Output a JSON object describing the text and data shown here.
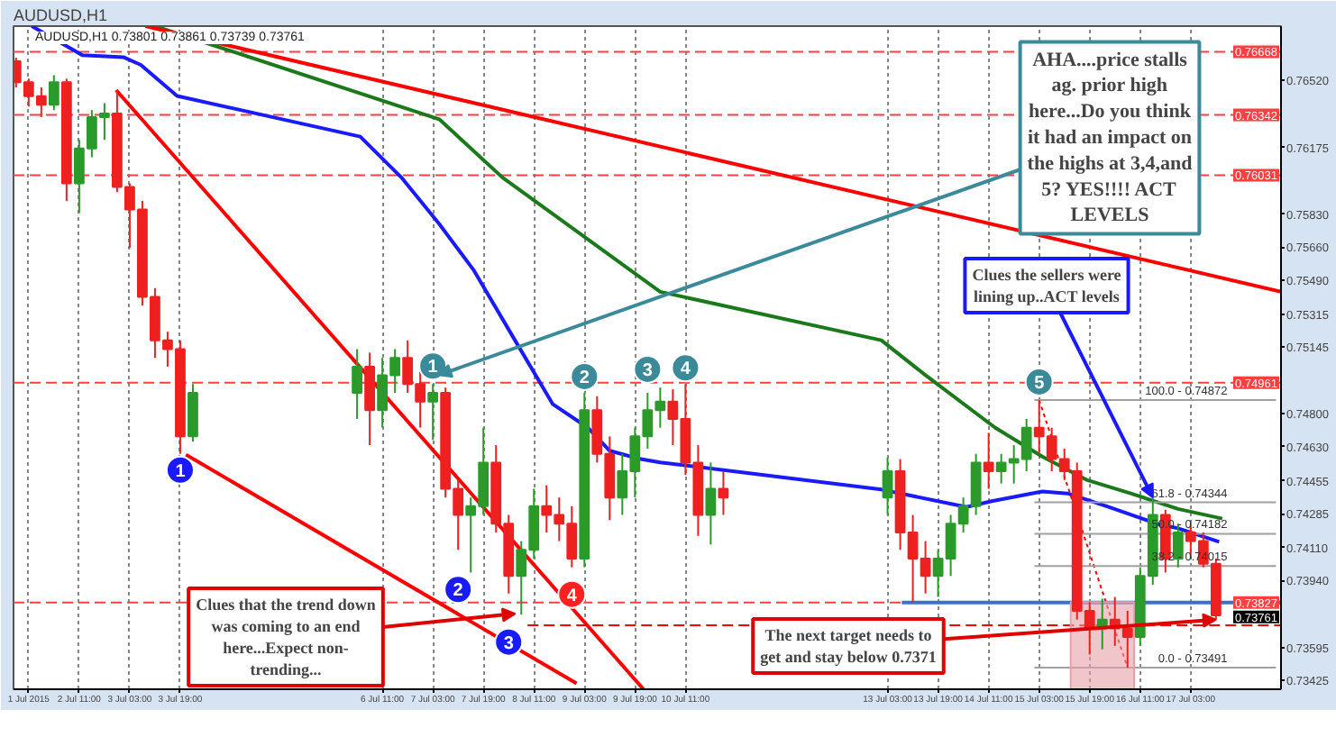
{
  "chart_data": {
    "type": "candlestick",
    "title": "AUDUSD,H1",
    "subtitle": "AUDUSD,H1  0.73801 0.73861 0.73739 0.73761",
    "xlim": [
      "2015-07-01T14:12",
      "2015-07-18T07:36"
    ],
    "ylim": [
      0.7338,
      0.768
    ],
    "xticks": [
      {
        "value": "2015-07-01T19:00",
        "label": "1 Jul 2015"
      },
      {
        "value": "2015-07-02T11:00",
        "label": "2 Jul 11:00"
      },
      {
        "value": "2015-07-03T03:00",
        "label": "3 Jul 03:00"
      },
      {
        "value": "2015-07-03T19:00",
        "label": "3 Jul 19:00"
      },
      {
        "value": "2015-07-06T11:00",
        "label": "6 Jul 11:00"
      },
      {
        "value": "2015-07-07T03:00",
        "label": "7 Jul 03:00"
      },
      {
        "value": "2015-07-07T19:00",
        "label": "7 Jul 19:00"
      },
      {
        "value": "2015-07-08T11:00",
        "label": "8 Jul 11:00"
      },
      {
        "value": "2015-07-09T03:00",
        "label": "9 Jul 03:00"
      },
      {
        "value": "2015-07-09T19:00",
        "label": "9 Jul 19:00"
      },
      {
        "value": "2015-07-10T11:00",
        "label": "10 Jul 11:00"
      },
      {
        "value": "2015-07-13T03:00",
        "label": "13 Jul 03:00"
      },
      {
        "value": "2015-07-13T19:00",
        "label": "13 Jul 19:00"
      },
      {
        "value": "2015-07-14T11:00",
        "label": "14 Jul 11:00"
      },
      {
        "value": "2015-07-15T03:00",
        "label": "15 Jul 03:00"
      },
      {
        "value": "2015-07-15T19:00",
        "label": "15 Jul 19:00"
      },
      {
        "value": "2015-07-16T11:00",
        "label": "16 Jul 11:00"
      },
      {
        "value": "2015-07-17T03:00",
        "label": "17 Jul 03:00"
      }
    ],
    "yticks": [
      {
        "value": 0.7652,
        "label": "0.76520"
      },
      {
        "value": 0.76175,
        "label": "0.76175"
      },
      {
        "value": 0.7583,
        "label": "0.75830"
      },
      {
        "value": 0.7566,
        "label": "0.75660"
      },
      {
        "value": 0.7549,
        "label": "0.75490"
      },
      {
        "value": 0.75315,
        "label": "0.75315"
      },
      {
        "value": 0.75145,
        "label": "0.75145"
      },
      {
        "value": 0.748,
        "label": "0.74800"
      },
      {
        "value": 0.7463,
        "label": "0.74630"
      },
      {
        "value": 0.74455,
        "label": "0.74455"
      },
      {
        "value": 0.74285,
        "label": "0.74285"
      },
      {
        "value": 0.7411,
        "label": "0.74110"
      },
      {
        "value": 0.7394,
        "label": "0.73940"
      },
      {
        "value": 0.73595,
        "label": "0.73595"
      },
      {
        "value": 0.73425,
        "label": "0.73425"
      }
    ],
    "grid": "x",
    "x": [
      "2015-07-01T15:00",
      "2015-07-01T19:00",
      "2015-07-01T23:00",
      "2015-07-02T03:00",
      "2015-07-02T07:00",
      "2015-07-02T11:00",
      "2015-07-02T15:00",
      "2015-07-02T19:00",
      "2015-07-02T23:00",
      "2015-07-03T03:00",
      "2015-07-03T07:00",
      "2015-07-03T11:00",
      "2015-07-03T15:00",
      "2015-07-03T19:00",
      "2015-07-03T23:00",
      "2015-07-06T03:00",
      "2015-07-06T07:00",
      "2015-07-06T11:00",
      "2015-07-06T15:00",
      "2015-07-06T19:00",
      "2015-07-06T23:00",
      "2015-07-07T03:00",
      "2015-07-07T07:00",
      "2015-07-07T11:00",
      "2015-07-07T15:00",
      "2015-07-07T19:00",
      "2015-07-07T23:00",
      "2015-07-08T03:00",
      "2015-07-08T07:00",
      "2015-07-08T11:00",
      "2015-07-08T15:00",
      "2015-07-08T19:00",
      "2015-07-08T23:00",
      "2015-07-09T03:00",
      "2015-07-09T07:00",
      "2015-07-09T11:00",
      "2015-07-09T15:00",
      "2015-07-09T19:00",
      "2015-07-09T23:00",
      "2015-07-10T03:00",
      "2015-07-10T07:00",
      "2015-07-10T11:00",
      "2015-07-10T15:00",
      "2015-07-10T19:00",
      "2015-07-10T23:00",
      "2015-07-13T03:00",
      "2015-07-13T07:00",
      "2015-07-13T11:00",
      "2015-07-13T15:00",
      "2015-07-13T19:00",
      "2015-07-13T23:00",
      "2015-07-14T03:00",
      "2015-07-14T07:00",
      "2015-07-14T11:00",
      "2015-07-14T15:00",
      "2015-07-14T19:00",
      "2015-07-14T23:00",
      "2015-07-15T03:00",
      "2015-07-15T07:00",
      "2015-07-15T11:00",
      "2015-07-15T15:00",
      "2015-07-15T19:00",
      "2015-07-15T23:00",
      "2015-07-16T03:00",
      "2015-07-16T07:00",
      "2015-07-16T11:00",
      "2015-07-16T15:00",
      "2015-07-16T19:00",
      "2015-07-16T23:00",
      "2015-07-17T03:00",
      "2015-07-17T07:00",
      "2015-07-17T11:00"
    ],
    "ohlc": [
      [
        0.76619,
        0.76637,
        0.76484,
        0.76511
      ],
      [
        0.76511,
        0.76529,
        0.76385,
        0.76439
      ],
      [
        0.76439,
        0.76484,
        0.76331,
        0.76394
      ],
      [
        0.76394,
        0.76547,
        0.76367,
        0.76511
      ],
      [
        0.76511,
        0.76529,
        0.75899,
        0.75989
      ],
      [
        0.75989,
        0.76214,
        0.75836,
        0.76169
      ],
      [
        0.76169,
        0.76367,
        0.76124,
        0.76331
      ],
      [
        0.76331,
        0.76403,
        0.76214,
        0.76349
      ],
      [
        0.76349,
        0.76466,
        0.75944,
        0.75971
      ],
      [
        0.75971,
        0.75989,
        0.75656,
        0.75854
      ],
      [
        0.75854,
        0.75899,
        0.75359,
        0.75404
      ],
      [
        0.75404,
        0.75449,
        0.75089,
        0.75179
      ],
      [
        0.75179,
        0.75224,
        0.75044,
        0.75134
      ],
      [
        0.75134,
        0.75179,
        0.74594,
        0.74684
      ],
      [
        0.74684,
        0.74954,
        0.74657,
        0.74909
      ],
      [
        0.74909,
        0.75134,
        0.74774,
        0.75044
      ],
      [
        0.75044,
        0.75116,
        0.74639,
        0.74819
      ],
      [
        0.74819,
        0.75089,
        0.74729,
        0.74999
      ],
      [
        0.74999,
        0.75134,
        0.74909,
        0.75089
      ],
      [
        0.75089,
        0.75179,
        0.74909,
        0.74954
      ],
      [
        0.74954,
        0.75017,
        0.74729,
        0.74864
      ],
      [
        0.74864,
        0.74954,
        0.74666,
        0.74909
      ],
      [
        0.74909,
        0.74936,
        0.74369,
        0.74414
      ],
      [
        0.74414,
        0.74459,
        0.74099,
        0.74279
      ],
      [
        0.74279,
        0.74369,
        0.73982,
        0.74324
      ],
      [
        0.74324,
        0.74729,
        0.74279,
        0.74549
      ],
      [
        0.74549,
        0.74639,
        0.74189,
        0.74234
      ],
      [
        0.74234,
        0.74279,
        0.73874,
        0.73964
      ],
      [
        0.73964,
        0.74144,
        0.73766,
        0.74099
      ],
      [
        0.74099,
        0.74414,
        0.74054,
        0.74324
      ],
      [
        0.74324,
        0.74432,
        0.74189,
        0.74279
      ],
      [
        0.74279,
        0.74369,
        0.74144,
        0.74234
      ],
      [
        0.74234,
        0.74324,
        0.74009,
        0.74054
      ],
      [
        0.74054,
        0.74909,
        0.74009,
        0.74819
      ],
      [
        0.74819,
        0.74891,
        0.74549,
        0.74594
      ],
      [
        0.74594,
        0.74684,
        0.74252,
        0.74369
      ],
      [
        0.74369,
        0.74594,
        0.74279,
        0.74504
      ],
      [
        0.74504,
        0.74729,
        0.74369,
        0.74684
      ],
      [
        0.74684,
        0.74909,
        0.74621,
        0.74819
      ],
      [
        0.74819,
        0.74936,
        0.74729,
        0.74864
      ],
      [
        0.74864,
        0.74927,
        0.74639,
        0.74774
      ],
      [
        0.74774,
        0.74954,
        0.74486,
        0.74549
      ],
      [
        0.74549,
        0.74639,
        0.74171,
        0.74279
      ],
      [
        0.74279,
        0.74549,
        0.74126,
        0.74414
      ],
      [
        0.74414,
        0.74504,
        0.74279,
        0.74369
      ],
      [
        0.74369,
        0.74576,
        0.74279,
        0.74504
      ],
      [
        0.74504,
        0.74567,
        0.74099,
        0.74189
      ],
      [
        0.74189,
        0.74279,
        0.73829,
        0.74054
      ],
      [
        0.74054,
        0.74144,
        0.73874,
        0.73964
      ],
      [
        0.73964,
        0.74099,
        0.73856,
        0.74054
      ],
      [
        0.74054,
        0.74279,
        0.73964,
        0.74234
      ],
      [
        0.74234,
        0.74369,
        0.74189,
        0.74324
      ],
      [
        0.74324,
        0.74594,
        0.74279,
        0.74549
      ],
      [
        0.74549,
        0.74702,
        0.74414,
        0.74504
      ],
      [
        0.74504,
        0.74594,
        0.74441,
        0.74549
      ],
      [
        0.74549,
        0.74639,
        0.74441,
        0.74567
      ],
      [
        0.74567,
        0.74774,
        0.74504,
        0.74729
      ],
      [
        0.74729,
        0.74872,
        0.74594,
        0.74684
      ],
      [
        0.74684,
        0.74729,
        0.74504,
        0.74567
      ],
      [
        0.74567,
        0.74621,
        0.74459,
        0.74504
      ],
      [
        0.74504,
        0.74549,
        0.73739,
        0.73784
      ],
      [
        0.73784,
        0.73829,
        0.73559,
        0.73694
      ],
      [
        0.73694,
        0.73847,
        0.73586,
        0.73739
      ],
      [
        0.73739,
        0.73856,
        0.73604,
        0.73694
      ],
      [
        0.73694,
        0.73784,
        0.73491,
        0.73649
      ],
      [
        0.73649,
        0.74009,
        0.73604,
        0.73964
      ],
      [
        0.73964,
        0.74369,
        0.73919,
        0.74279
      ],
      [
        0.74279,
        0.74306,
        0.73982,
        0.74054
      ],
      [
        0.74054,
        0.74234,
        0.74009,
        0.74189
      ],
      [
        0.74189,
        0.74234,
        0.74054,
        0.74144
      ],
      [
        0.74144,
        0.74189,
        0.74009,
        0.74027
      ],
      [
        0.74027,
        0.74054,
        0.73739,
        0.73761
      ]
    ],
    "series": [
      {
        "type": "area",
        "color": "#e8a0a8",
        "x": [
          "2015-07-15T13:00",
          "2015-07-16T09:06"
        ],
        "values": [
          0.7383,
          0.7383
        ]
      },
      {
        "type": "line",
        "color": "#1a1aff",
        "x": [
          "2015-07-01T20:00",
          "2015-07-02T12:00",
          "2015-07-03T01:00",
          "2015-07-03T06:30",
          "2015-07-03T18:00",
          "2015-07-06T04:00",
          "2015-07-06T17:00",
          "2015-07-07T05:00",
          "2015-07-07T16:00",
          "2015-07-08T05:00",
          "2015-07-08T17:00",
          "2015-07-09T04:00",
          "2015-07-09T11:00",
          "2015-07-09T20:00",
          "2015-07-10T03:00",
          "2015-07-13T01:00",
          "2015-07-14T04:00",
          "2015-07-14T12:00",
          "2015-07-15T04:00",
          "2015-07-15T12:00",
          "2015-07-16T01:00",
          "2015-07-16T17:00",
          "2015-07-16T23:00",
          "2015-07-17T12:00"
        ],
        "values": [
          0.768,
          0.7665,
          0.7664,
          0.766,
          0.7644,
          0.7623,
          0.7602,
          0.7578,
          0.7554,
          0.7518,
          0.7485,
          0.7473,
          0.7461,
          0.7457,
          0.7455,
          0.7441,
          0.7432,
          0.7435,
          0.744,
          0.7439,
          0.7432,
          0.7423,
          0.7421,
          0.7414
        ]
      },
      {
        "type": "line",
        "color": "#1a7a1a",
        "x": [
          "2015-07-03T11:00",
          "2015-07-07T05:00",
          "2015-07-08T01:00",
          "2015-07-10T03:00",
          "2015-07-13T01:00",
          "2015-07-13T15:00",
          "2015-07-14T13:00",
          "2015-07-15T04:00",
          "2015-07-15T18:00",
          "2015-07-16T08:00",
          "2015-07-16T23:00",
          "2015-07-17T13:00"
        ],
        "values": [
          0.768,
          0.7632,
          0.7602,
          0.7543,
          0.7518,
          0.75,
          0.7473,
          0.7458,
          0.7446,
          0.7439,
          0.7431,
          0.7426
        ]
      },
      {
        "type": "line",
        "color": "#ff0000",
        "x": [
          "2015-07-03T08:00",
          "2015-07-18T07:36"
        ],
        "values": [
          0.768,
          0.7543
        ]
      },
      {
        "type": "line",
        "color": "#ff0000",
        "x": [
          "2015-07-02T22:42",
          "2015-07-09T21:42"
        ],
        "values": [
          0.7647,
          0.7338
        ]
      },
      {
        "type": "line",
        "color": "#ff0000",
        "x": [
          "2015-07-03T20:48",
          "2015-07-09T00:30"
        ],
        "values": [
          0.7459,
          0.7341
        ]
      },
      {
        "type": "line",
        "color": "#3a6ed0",
        "x": [
          "2015-07-13T07:30",
          "2015-07-18T07:36"
        ],
        "values": [
          0.73827,
          0.73827
        ]
      },
      {
        "type": "line",
        "color": "#ff0000",
        "line_style": "dashed",
        "x": [
          "2015-07-08T09:00",
          "2015-07-18T07:36"
        ],
        "values": [
          0.7371,
          0.7371
        ]
      },
      {
        "type": "line",
        "color": "#ff0000",
        "line_style": "dotted",
        "x": [
          "2015-07-15T03:00",
          "2015-07-16T07:00"
        ],
        "values": [
          0.74872,
          0.73491
        ]
      },
      {
        "type": "line",
        "color": "#a0a0a0",
        "name": "100.0 - 0.74872",
        "x": [
          "2015-07-15T01:30",
          "2015-07-18T06:00"
        ],
        "values": [
          0.74872,
          0.74872
        ]
      },
      {
        "type": "line",
        "color": "#a0a0a0",
        "name": "61.8 - 0.74344",
        "x": [
          "2015-07-15T01:30",
          "2015-07-18T06:00"
        ],
        "values": [
          0.74344,
          0.74344
        ]
      },
      {
        "type": "line",
        "color": "#a0a0a0",
        "name": "50.0 - 0.74182",
        "x": [
          "2015-07-15T01:30",
          "2015-07-18T06:00"
        ],
        "values": [
          0.74182,
          0.74182
        ]
      },
      {
        "type": "line",
        "color": "#a0a0a0",
        "name": "38.2 - 0.74015",
        "x": [
          "2015-07-15T01:30",
          "2015-07-18T06:00"
        ],
        "values": [
          0.74015,
          0.74015
        ]
      },
      {
        "type": "line",
        "color": "#a0a0a0",
        "name": "0.0 - 0.73491",
        "x": [
          "2015-07-15T01:30",
          "2015-07-18T06:00"
        ],
        "values": [
          0.73491,
          0.73491
        ]
      }
    ],
    "ref_lines": [
      {
        "axis": "y",
        "value": 0.76668,
        "label": "0.76668",
        "color": "#ff4040",
        "line_style": "dashed"
      },
      {
        "axis": "y",
        "value": 0.76342,
        "label": "0.76342",
        "color": "#ff4040",
        "line_style": "dashed"
      },
      {
        "axis": "y",
        "value": 0.76031,
        "label": "0.76031",
        "color": "#ff4040",
        "line_style": "dashed"
      },
      {
        "axis": "y",
        "value": 0.74961,
        "label": "0.74961",
        "color": "#ff4040",
        "line_style": "dashed"
      },
      {
        "axis": "y",
        "value": 0.73827,
        "label": "0.73827",
        "color": "#ff4040",
        "line_style": "dashed"
      }
    ],
    "annotations": [
      {
        "text": "AHA....price stalls ag. prior high here...Do you think it had an impact on the highs at 3,4,and 5? YES!!!! ACT LEVELS",
        "x": "2015-07-07T04:48",
        "y": 0.75
      },
      {
        "text": "Clues that the trend down was coming to an end here...Expect non-trending...",
        "x": "2015-07-08T05:06",
        "y": 0.7377
      },
      {
        "text": "The next target needs to get and stay below 0.7371",
        "x": "2015-07-17T11:00",
        "y": 0.73739
      },
      {
        "text": "Clues the sellers were lining up..ACT levels",
        "x": "2015-07-16T15:00",
        "y": 0.74369
      },
      "1",
      "2",
      "3",
      "4",
      "5",
      "1",
      "2",
      "3",
      "4",
      "0.73761"
    ]
  }
}
